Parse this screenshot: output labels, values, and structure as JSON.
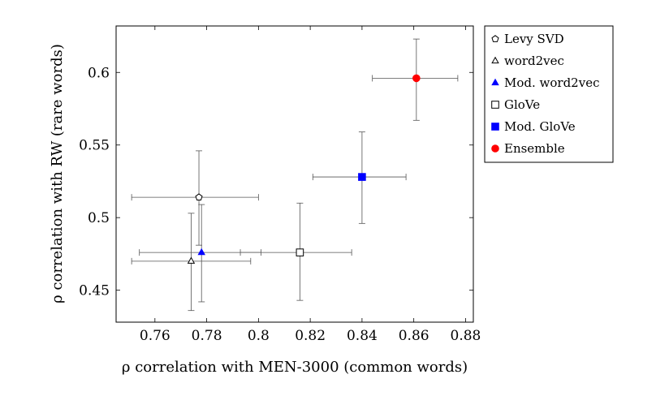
{
  "chart_data": {
    "type": "scatter",
    "title": "",
    "xlabel": "ρ correlation with MEN-3000 (common words)",
    "ylabel": "ρ correlation with RW (rare words)",
    "xlim": [
      0.745,
      0.883
    ],
    "ylim": [
      0.428,
      0.632
    ],
    "x_ticks": [
      0.76,
      0.78,
      0.8,
      0.82,
      0.84,
      0.86,
      0.88
    ],
    "y_ticks": [
      0.45,
      0.5,
      0.55,
      0.6
    ],
    "x_tick_labels": [
      "0.76",
      "0.78",
      "0.8",
      "0.82",
      "0.84",
      "0.86",
      "0.88"
    ],
    "y_tick_labels": [
      "0.45",
      "0.5",
      "0.55",
      "0.6"
    ],
    "grid": false,
    "legend_position": "outside-right-top",
    "series": [
      {
        "name": "Levy SVD",
        "marker": "pentagon-open",
        "color": "#000000",
        "x": 0.777,
        "y": 0.514,
        "xerr": [
          0.751,
          0.8
        ],
        "yerr": [
          0.481,
          0.546
        ]
      },
      {
        "name": "word2vec",
        "marker": "triangle-open",
        "color": "#000000",
        "x": 0.774,
        "y": 0.47,
        "xerr": [
          0.751,
          0.797
        ],
        "yerr": [
          0.436,
          0.503
        ]
      },
      {
        "name": "Mod. word2vec",
        "marker": "triangle-filled",
        "color": "#0000ff",
        "x": 0.778,
        "y": 0.476,
        "xerr": [
          0.754,
          0.801
        ],
        "yerr": [
          0.442,
          0.509
        ]
      },
      {
        "name": "GloVe",
        "marker": "square-open",
        "color": "#000000",
        "x": 0.816,
        "y": 0.476,
        "xerr": [
          0.793,
          0.836
        ],
        "yerr": [
          0.443,
          0.51
        ]
      },
      {
        "name": "Mod. GloVe",
        "marker": "square-filled",
        "color": "#0000ff",
        "x": 0.84,
        "y": 0.528,
        "xerr": [
          0.821,
          0.857
        ],
        "yerr": [
          0.496,
          0.559
        ]
      },
      {
        "name": "Ensemble",
        "marker": "circle-filled",
        "color": "#ff0000",
        "x": 0.861,
        "y": 0.596,
        "xerr": [
          0.844,
          0.877
        ],
        "yerr": [
          0.567,
          0.623
        ]
      }
    ]
  }
}
